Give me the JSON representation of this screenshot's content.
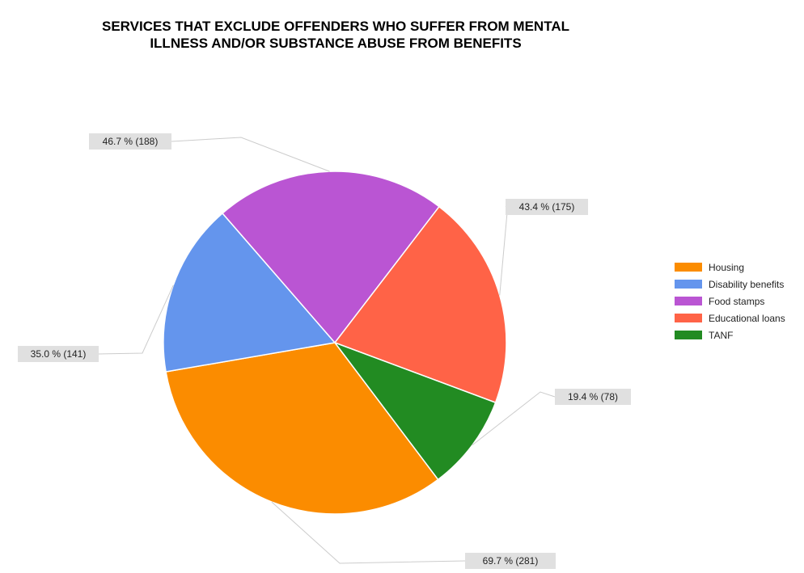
{
  "chart_data": {
    "type": "pie",
    "title": [
      "SERVICES THAT EXCLUDE OFFENDERS WHO SUFFER FROM MENTAL",
      "ILLNESS AND/OR SUBSTANCE ABUSE FROM BENEFITS"
    ],
    "slices": [
      {
        "name": "Housing",
        "percent": 69.7,
        "count": 281,
        "label": "69.7 % (281)",
        "color": "#fb8c00"
      },
      {
        "name": "Disability benefits",
        "percent": 35.0,
        "count": 141,
        "label": "35.0 % (141)",
        "color": "#6495ed"
      },
      {
        "name": "Food stamps",
        "percent": 46.7,
        "count": 188,
        "label": "46.7 % (188)",
        "color": "#ba55d3"
      },
      {
        "name": "Educational loans",
        "percent": 43.4,
        "count": 175,
        "label": "43.4 % (175)",
        "color": "#ff6347"
      },
      {
        "name": "TANF",
        "percent": 19.4,
        "count": 78,
        "label": "19.4 % (78)",
        "color": "#228b22"
      }
    ],
    "legend_position": "right"
  }
}
